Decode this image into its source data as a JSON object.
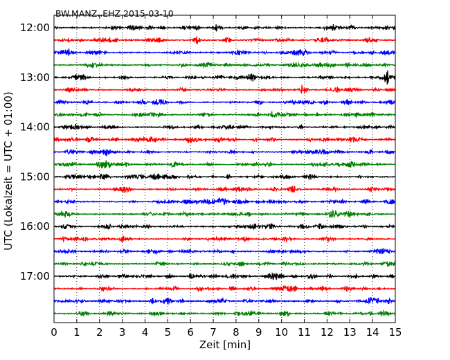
{
  "chart_data": {
    "type": "line",
    "title": "BW.MANZ..EHZ 2015-03-10",
    "xlabel": "Zeit  [min]",
    "ylabel": "UTC (Lokalzeit = UTC + 01:00)",
    "xlim": [
      0,
      15
    ],
    "x_ticks": [
      0,
      1,
      2,
      3,
      4,
      5,
      6,
      7,
      8,
      9,
      10,
      11,
      12,
      13,
      14,
      15
    ],
    "y_tick_labels": [
      "12:00",
      "13:00",
      "14:00",
      "15:00",
      "16:00",
      "17:00"
    ],
    "trace_minutes": 15,
    "grid": "vertical dotted",
    "colors": [
      "#000000",
      "#ff0000",
      "#0000ff",
      "#008000"
    ],
    "traces": [
      {
        "start": "12:00",
        "color": "#000000"
      },
      {
        "start": "12:15",
        "color": "#ff0000"
      },
      {
        "start": "12:30",
        "color": "#0000ff"
      },
      {
        "start": "12:45",
        "color": "#008000"
      },
      {
        "start": "13:00",
        "color": "#000000"
      },
      {
        "start": "13:15",
        "color": "#ff0000"
      },
      {
        "start": "13:30",
        "color": "#0000ff"
      },
      {
        "start": "13:45",
        "color": "#008000"
      },
      {
        "start": "14:00",
        "color": "#000000"
      },
      {
        "start": "14:15",
        "color": "#ff0000"
      },
      {
        "start": "14:30",
        "color": "#0000ff"
      },
      {
        "start": "14:45",
        "color": "#008000"
      },
      {
        "start": "15:00",
        "color": "#000000"
      },
      {
        "start": "15:15",
        "color": "#ff0000"
      },
      {
        "start": "15:30",
        "color": "#0000ff"
      },
      {
        "start": "15:45",
        "color": "#008000"
      },
      {
        "start": "16:00",
        "color": "#000000"
      },
      {
        "start": "16:15",
        "color": "#ff0000"
      },
      {
        "start": "16:30",
        "color": "#0000ff"
      },
      {
        "start": "16:45",
        "color": "#008000"
      },
      {
        "start": "17:00",
        "color": "#000000"
      },
      {
        "start": "17:15",
        "color": "#ff0000"
      },
      {
        "start": "17:30",
        "color": "#0000ff"
      },
      {
        "start": "17:45",
        "color": "#008000"
      }
    ]
  }
}
